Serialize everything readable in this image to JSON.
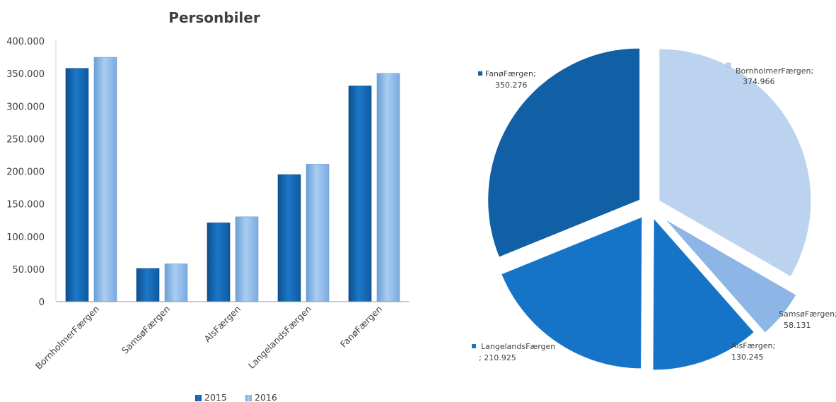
{
  "chart_data": [
    {
      "type": "bar",
      "title": "Personbiler",
      "categories": [
        "BornholmerFærgen",
        "SamsøFærgen",
        "AlsFærgen",
        "LangelandsFærgen",
        "FanøFærgen"
      ],
      "series": [
        {
          "name": "2015",
          "values": [
            358000,
            51000,
            121000,
            195000,
            331000
          ]
        },
        {
          "name": "2016",
          "values": [
            374966,
            58131,
            130245,
            210925,
            350276
          ]
        }
      ],
      "ylim": [
        0,
        400000
      ],
      "yticks": [
        "0",
        "50.000",
        "100.000",
        "150.000",
        "200.000",
        "250.000",
        "300.000",
        "350.000",
        "400.000"
      ],
      "grid": false,
      "legend_position": "bottom"
    },
    {
      "type": "pie",
      "slices": [
        {
          "label": "BornholmerFærgen;",
          "value_text": "374.966",
          "value": 374966
        },
        {
          "label": "SamsøFærgen;",
          "value_text": "58.131",
          "value": 58131
        },
        {
          "label": "AlsFærgen;",
          "value_text": "130.245",
          "value": 130245
        },
        {
          "label": "LangelandsFærgen",
          "value_text": "; 210.925",
          "value": 210925
        },
        {
          "label": "FanøFærgen;",
          "value_text": "350.276",
          "value": 350276
        }
      ]
    }
  ],
  "colors": {
    "series_2015": "#1a72c0",
    "series_2016": "#8fbbe8",
    "slices": [
      "#bcd3f0",
      "#8db6e6",
      "#1574c8",
      "#1574c8",
      "#115fa5"
    ],
    "text": "#404040",
    "axis": "#9a9a9a"
  }
}
